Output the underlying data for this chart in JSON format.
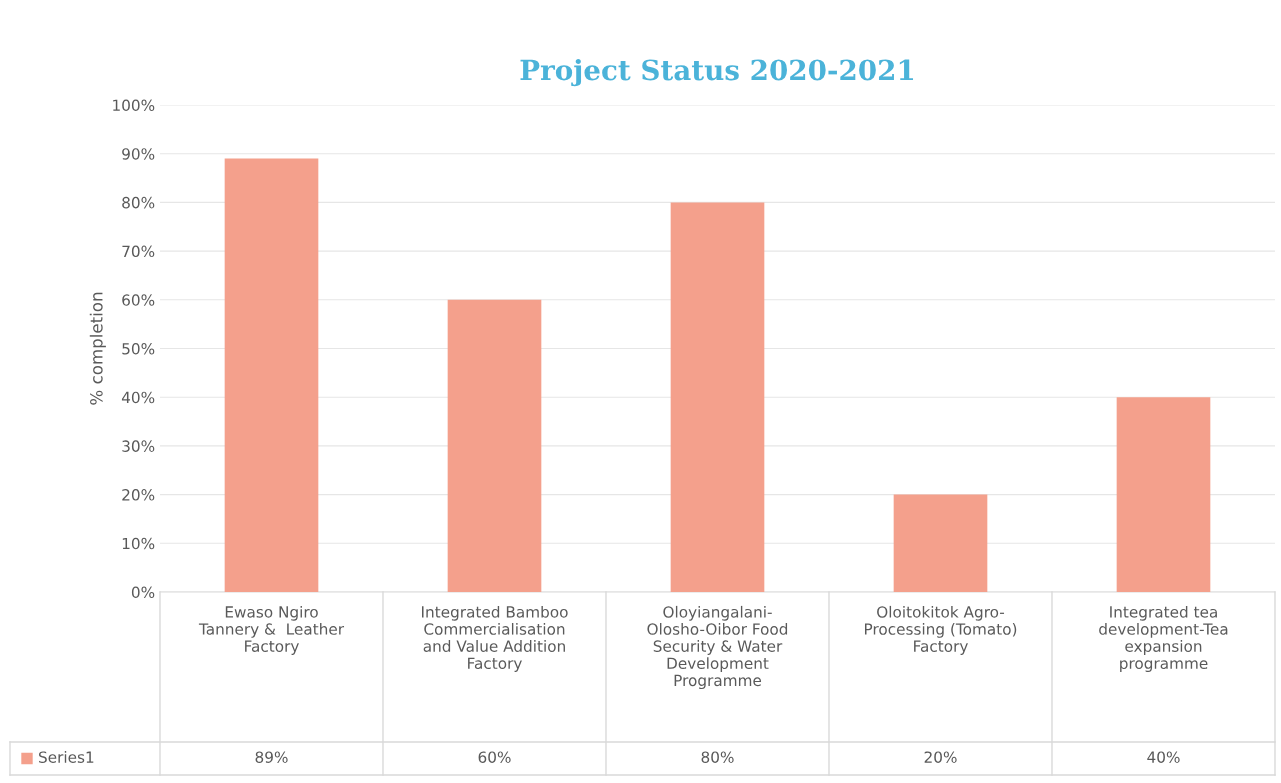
{
  "chart_data": {
    "type": "bar",
    "title": "Project Status 2020-2021",
    "ylabel": "% completion",
    "categories": [
      "Ewaso Ngiro\nTannery &  Leather\nFactory",
      "Integrated Bamboo\nCommercialisation\nand Value Addition\nFactory",
      "Oloyiangalani-\nOlosho-Oibor Food\nSecurity & Water\nDevelopment\nProgramme",
      "Oloitokitok Agro-\nProcessing (Tomato)\nFactory",
      "Integrated tea\ndevelopment-Tea\nexpansion\nprogramme"
    ],
    "series": [
      {
        "name": "Series1",
        "color": "#f4a08c",
        "values": [
          89,
          60,
          80,
          20,
          40
        ],
        "value_labels": [
          "89%",
          "60%",
          "80%",
          "20%",
          "40%"
        ]
      }
    ],
    "ylim": [
      0,
      100
    ],
    "yticks": [
      {
        "value": 0,
        "label": "0%"
      },
      {
        "value": 10,
        "label": "10%"
      },
      {
        "value": 20,
        "label": "20%"
      },
      {
        "value": 30,
        "label": "30%"
      },
      {
        "value": 40,
        "label": "40%"
      },
      {
        "value": 50,
        "label": "50%"
      },
      {
        "value": 60,
        "label": "60%"
      },
      {
        "value": 70,
        "label": "70%"
      },
      {
        "value": 80,
        "label": "80%"
      },
      {
        "value": 90,
        "label": "90%"
      },
      {
        "value": 100,
        "label": "100%"
      }
    ],
    "grid": "y",
    "legend": "bottom left"
  }
}
